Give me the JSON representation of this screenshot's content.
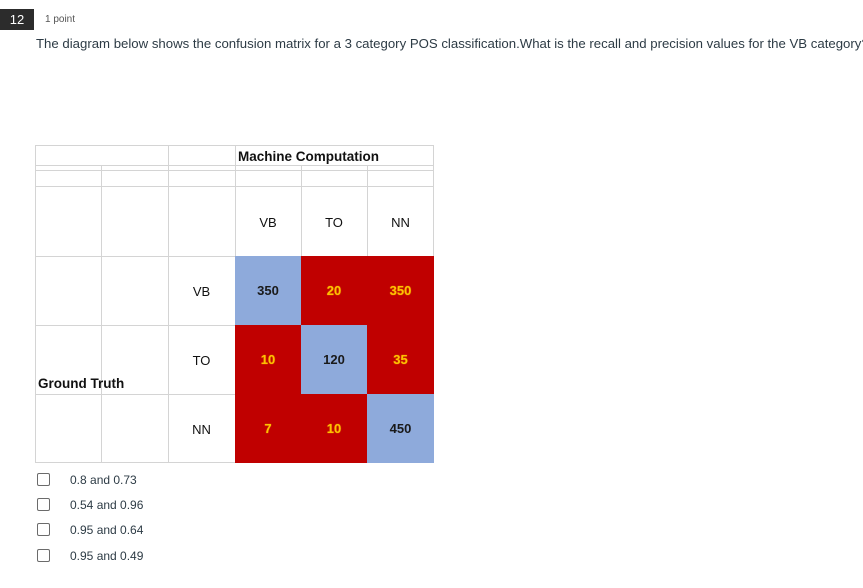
{
  "question": {
    "number": "12",
    "points": "1 point",
    "text": "The diagram below shows the confusion matrix for a 3 category POS classification.What is the recall and precision values for the VB category?"
  },
  "matrix": {
    "column_header": "Machine Computation",
    "row_header": "Ground Truth",
    "column_labels": [
      "VB",
      "TO",
      "NN"
    ],
    "row_labels": [
      "VB",
      "TO",
      "NN"
    ],
    "values": [
      [
        "350",
        "20",
        "350"
      ],
      [
        "10",
        "120",
        "35"
      ],
      [
        "7",
        "10",
        "450"
      ]
    ],
    "colors": {
      "diagonal": "#8eaadb",
      "off_diagonal": "#c00000",
      "off_diagonal_text": "#ffc000"
    }
  },
  "options": [
    {
      "label": "0.8 and 0.73",
      "checked": false
    },
    {
      "label": "0.54 and 0.96",
      "checked": false
    },
    {
      "label": "0.95 and 0.64",
      "checked": false
    },
    {
      "label": "0.95 and 0.49",
      "checked": false
    }
  ]
}
